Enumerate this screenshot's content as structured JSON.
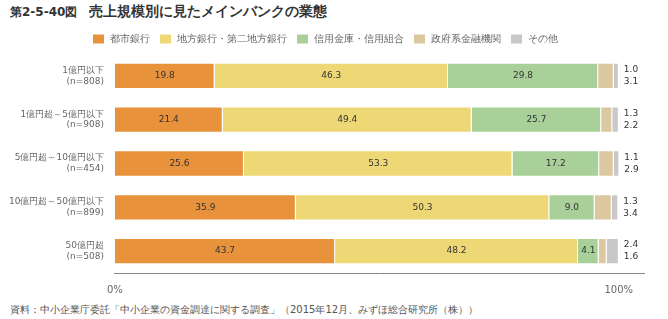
{
  "chart_data": {
    "type": "bar",
    "orientation": "horizontal",
    "stacked": true,
    "title_prefix": "第2-5-40図",
    "title": "売上規模別に見たメインバンクの業態",
    "footnote": "資料：中小企業庁委託「中小企業の資金調達に関する調査」（2015年12月、みずほ総合研究所（株））",
    "categories": [
      "1億円以下\n(n=808)",
      "1億円超～5億円以下\n(n=908)",
      "5億円超～10億円以下\n(n=454)",
      "10億円超～50億円以下\n(n=899)",
      "50億円超\n(n=508)"
    ],
    "series": [
      {
        "name": "都市銀行",
        "color": "#E8923C",
        "values": [
          19.8,
          21.4,
          25.6,
          35.9,
          43.7
        ],
        "value_labels": [
          "19.8",
          "21.4",
          "25.6",
          "35.9",
          "43.7"
        ]
      },
      {
        "name": "地方銀行・第二地方銀行",
        "color": "#EDD875",
        "values": [
          46.3,
          49.4,
          53.3,
          50.3,
          48.2
        ],
        "value_labels": [
          "46.3",
          "49.4",
          "53.3",
          "50.3",
          "48.2"
        ]
      },
      {
        "name": "信用金庫・信用組合",
        "color": "#A8D098",
        "values": [
          29.8,
          25.7,
          17.2,
          9.0,
          4.1
        ],
        "value_labels": [
          "29.8",
          "25.7",
          "17.2",
          "9.0",
          "4.1"
        ]
      },
      {
        "name": "政府系金融機関",
        "color": "#DCC8A0",
        "values": [
          3.1,
          2.2,
          2.9,
          3.4,
          1.6
        ],
        "value_labels": [
          "3.1",
          "2.2",
          "2.9",
          "3.4",
          "1.6"
        ]
      },
      {
        "name": "その他",
        "color": "#C8C8C8",
        "values": [
          1.0,
          1.3,
          1.1,
          1.3,
          2.4
        ],
        "value_labels": [
          "1.0",
          "1.3",
          "1.1",
          "1.3",
          "2.4"
        ]
      }
    ],
    "xlim": [
      0,
      105
    ],
    "xticks": [
      {
        "value": 0,
        "label": "0%"
      },
      {
        "value": 100,
        "label": "100%"
      }
    ],
    "grid": false,
    "legend": "top",
    "data_labels": true
  }
}
